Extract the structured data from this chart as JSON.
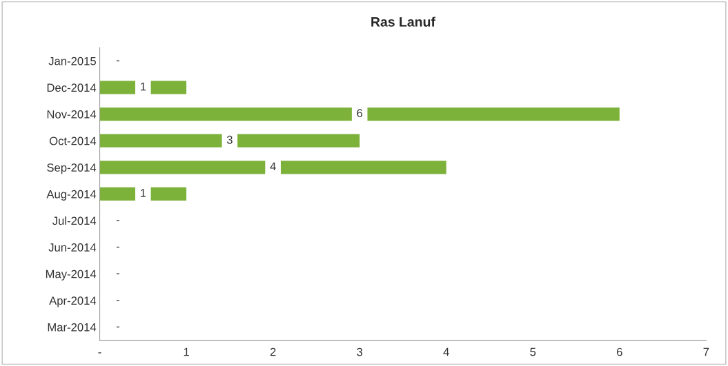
{
  "chart_data": {
    "type": "bar",
    "orientation": "horizontal",
    "title": "Ras Lanuf",
    "categories": [
      "Jan-2015",
      "Dec-2014",
      "Nov-2014",
      "Oct-2014",
      "Sep-2014",
      "Aug-2014",
      "Jul-2014",
      "Jun-2014",
      "May-2014",
      "Apr-2014",
      "Mar-2014"
    ],
    "values": [
      0,
      1,
      6,
      3,
      4,
      1,
      0,
      0,
      0,
      0,
      0
    ],
    "value_labels": [
      "-",
      "1",
      "6",
      "3",
      "4",
      "1",
      "-",
      "-",
      "-",
      "-",
      "-"
    ],
    "color": "#7cb13a",
    "xlim": [
      0,
      7
    ],
    "xticks": [
      {
        "value": 0,
        "label": "-"
      },
      1,
      2,
      3,
      4,
      5,
      6,
      7
    ],
    "grid": false,
    "legend": false
  }
}
